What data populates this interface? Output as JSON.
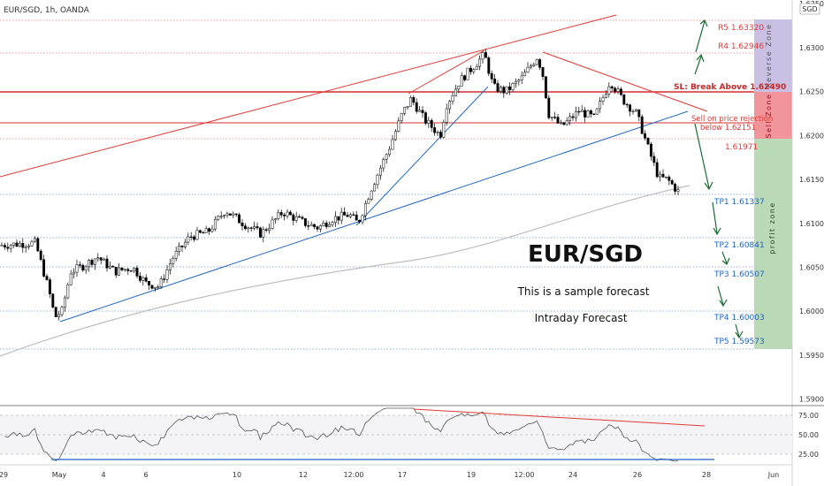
{
  "header": {
    "symbol_line": "EUR/SGD, 1h, OANDA",
    "currency_badge": "SGD"
  },
  "annotations": {
    "main_title": "EUR/SGD",
    "subtitle": "This is a sample forecast",
    "forecast_type": "Intraday Forecast",
    "r5": "R5 1.63320",
    "r4": "R4 1.62946",
    "sl": "SL: Break Above 1.62490",
    "sell_note_1": "Sell on price rejection",
    "sell_note_2": "below 1.62151",
    "level_19971": "1.61971",
    "tp1": "TP1 1.61337",
    "tp2": "TP2 1.60841",
    "tp3": "TP3 1.60507",
    "tp4": "TP4 1.60003",
    "tp5": "TP5 1.59573",
    "reverse_zone": "Reverse Zone",
    "sell_zone": "Sell Zone",
    "profit_zone": "profit zone"
  },
  "colors": {
    "bull": "#ffffff",
    "bear": "#000000",
    "red_line": "#e53935",
    "blue_line": "#1e64c8",
    "green_arrow": "#1b6b35",
    "reverse_zone": "#c9c0e3",
    "sell_zone": "#f1959a",
    "profit_zone": "#b9d9b7",
    "ma_line": "#bdbdbd"
  },
  "chart_data": {
    "type": "candlestick",
    "instrument": "EUR/SGD",
    "timeframe": "1h",
    "price_axis": {
      "ylim": [
        1.5875,
        1.635
      ],
      "ticks": [
        "1.63500",
        "1.63000",
        "1.62500",
        "1.62000",
        "1.61500",
        "1.61000",
        "1.60500",
        "1.60000",
        "1.59500",
        "1.59000"
      ]
    },
    "time_axis": {
      "ticks": [
        "29",
        "May",
        "4",
        "6",
        "10",
        "12",
        "12:00",
        "17",
        "19",
        "12:00",
        "24",
        "26",
        "28",
        "Jun"
      ]
    },
    "levels": [
      {
        "name": "R5",
        "value": 1.6332
      },
      {
        "name": "R4",
        "value": 1.62946
      },
      {
        "name": "SL",
        "value": 1.6249
      },
      {
        "name": "Sell",
        "value": 1.62151
      },
      {
        "name": "Level",
        "value": 1.61971
      },
      {
        "name": "TP1",
        "value": 1.61337
      },
      {
        "name": "TP2",
        "value": 1.60841
      },
      {
        "name": "TP3",
        "value": 1.60507
      },
      {
        "name": "TP4",
        "value": 1.60003
      },
      {
        "name": "TP5",
        "value": 1.59573
      }
    ],
    "price_path": [
      [
        0,
        1.6075
      ],
      [
        40,
        1.6078
      ],
      [
        55,
        1.6025
      ],
      [
        62,
        1.5993
      ],
      [
        70,
        1.6
      ],
      [
        80,
        1.6045
      ],
      [
        95,
        1.6052
      ],
      [
        110,
        1.6062
      ],
      [
        130,
        1.6045
      ],
      [
        150,
        1.605
      ],
      [
        165,
        1.6032
      ],
      [
        180,
        1.6028
      ],
      [
        195,
        1.606
      ],
      [
        215,
        1.6085
      ],
      [
        235,
        1.609
      ],
      [
        255,
        1.6115
      ],
      [
        275,
        1.61
      ],
      [
        295,
        1.6088
      ],
      [
        320,
        1.6113
      ],
      [
        345,
        1.61
      ],
      [
        360,
        1.6095
      ],
      [
        375,
        1.6105
      ],
      [
        395,
        1.611
      ],
      [
        405,
        1.61
      ],
      [
        420,
        1.614
      ],
      [
        440,
        1.6185
      ],
      [
        455,
        1.6225
      ],
      [
        465,
        1.6242
      ],
      [
        480,
        1.6218
      ],
      [
        498,
        1.62
      ],
      [
        505,
        1.6235
      ],
      [
        520,
        1.6262
      ],
      [
        548,
        1.6292
      ],
      [
        558,
        1.6255
      ],
      [
        572,
        1.625
      ],
      [
        590,
        1.6265
      ],
      [
        608,
        1.629
      ],
      [
        615,
        1.6265
      ],
      [
        620,
        1.6225
      ],
      [
        635,
        1.621
      ],
      [
        655,
        1.6228
      ],
      [
        672,
        1.622
      ],
      [
        690,
        1.6262
      ],
      [
        705,
        1.624
      ],
      [
        720,
        1.6225
      ],
      [
        735,
        1.618
      ],
      [
        745,
        1.6152
      ],
      [
        755,
        1.615
      ],
      [
        768,
        1.6135
      ]
    ],
    "rsi": {
      "levels": [
        75,
        50,
        25
      ],
      "ticks": [
        "75.00",
        "50.00",
        "25.00"
      ]
    }
  }
}
